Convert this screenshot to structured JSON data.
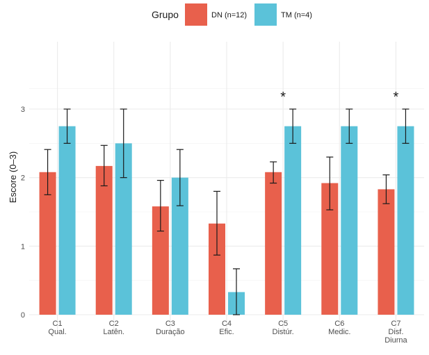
{
  "chart_data": {
    "type": "bar",
    "title": "",
    "xlabel": "",
    "ylabel": "Escore (0–3)",
    "ylim": [
      0,
      3.3
    ],
    "yticks": [
      0,
      1,
      2,
      3
    ],
    "grid": true,
    "legend": {
      "title": "Grupo",
      "placement": "top-center"
    },
    "categories": [
      [
        "C1",
        "Qual."
      ],
      [
        "C2",
        "Latên."
      ],
      [
        "C3",
        "Duração"
      ],
      [
        "C4",
        "Efic."
      ],
      [
        "C5",
        "Distúr."
      ],
      [
        "C6",
        "Medic."
      ],
      [
        "C7",
        "Disf.",
        "Diurna"
      ]
    ],
    "series": [
      {
        "name": "DN (n=12)",
        "color": "#E8604C",
        "values": [
          2.08,
          2.17,
          1.58,
          1.33,
          2.08,
          1.92,
          1.83
        ],
        "err_low": [
          1.75,
          1.88,
          1.22,
          0.87,
          1.92,
          1.53,
          1.62
        ],
        "err_high": [
          2.41,
          2.47,
          1.96,
          1.8,
          2.23,
          2.3,
          2.04
        ]
      },
      {
        "name": "TM (n=4)",
        "color": "#5BC2D9",
        "values": [
          2.75,
          2.5,
          2.0,
          0.33,
          2.75,
          2.75,
          2.75
        ],
        "err_low": [
          2.5,
          2.0,
          1.59,
          0.0,
          2.5,
          2.5,
          2.5
        ],
        "err_high": [
          3.0,
          3.0,
          2.41,
          0.67,
          3.0,
          3.0,
          3.0
        ]
      }
    ],
    "annotations": [
      {
        "category_index": 4,
        "text": "*"
      },
      {
        "category_index": 6,
        "text": "*"
      }
    ]
  }
}
